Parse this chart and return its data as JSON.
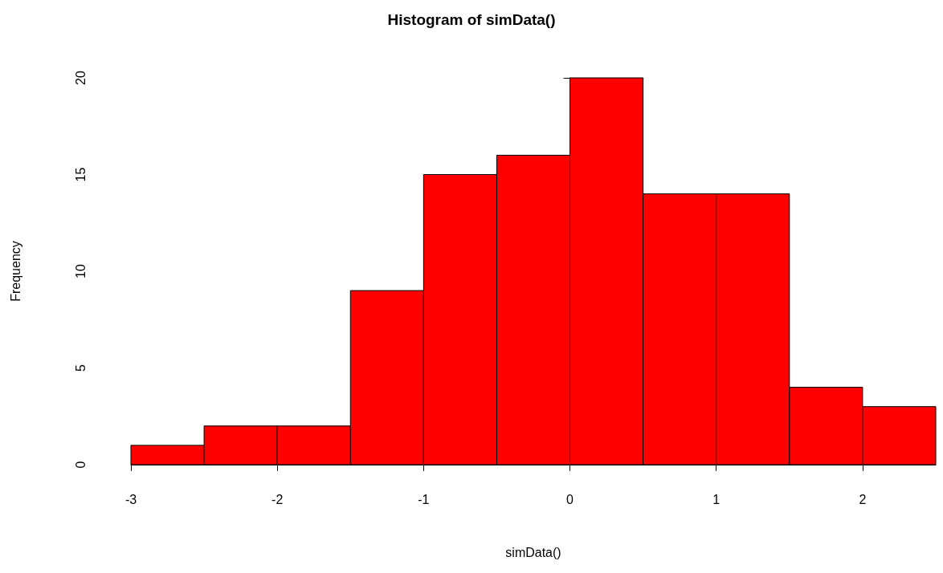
{
  "chart_data": {
    "type": "histogram",
    "title": "Histogram of simData()",
    "xlabel": "simData()",
    "ylabel": "Frequency",
    "bins": [
      -3,
      -2.5,
      -2,
      -1.5,
      -1,
      -0.5,
      0,
      0.5,
      1,
      1.5,
      2,
      2.5
    ],
    "values": [
      1,
      2,
      2,
      9,
      15,
      16,
      20,
      14,
      14,
      4,
      3
    ],
    "color": "#ff0000",
    "xlim": [
      -3,
      2.5
    ],
    "xticks": [
      -3,
      -2,
      -1,
      0,
      1,
      2
    ],
    "ylim": [
      0,
      20
    ],
    "yticks": [
      0,
      5,
      10,
      15,
      20
    ]
  }
}
